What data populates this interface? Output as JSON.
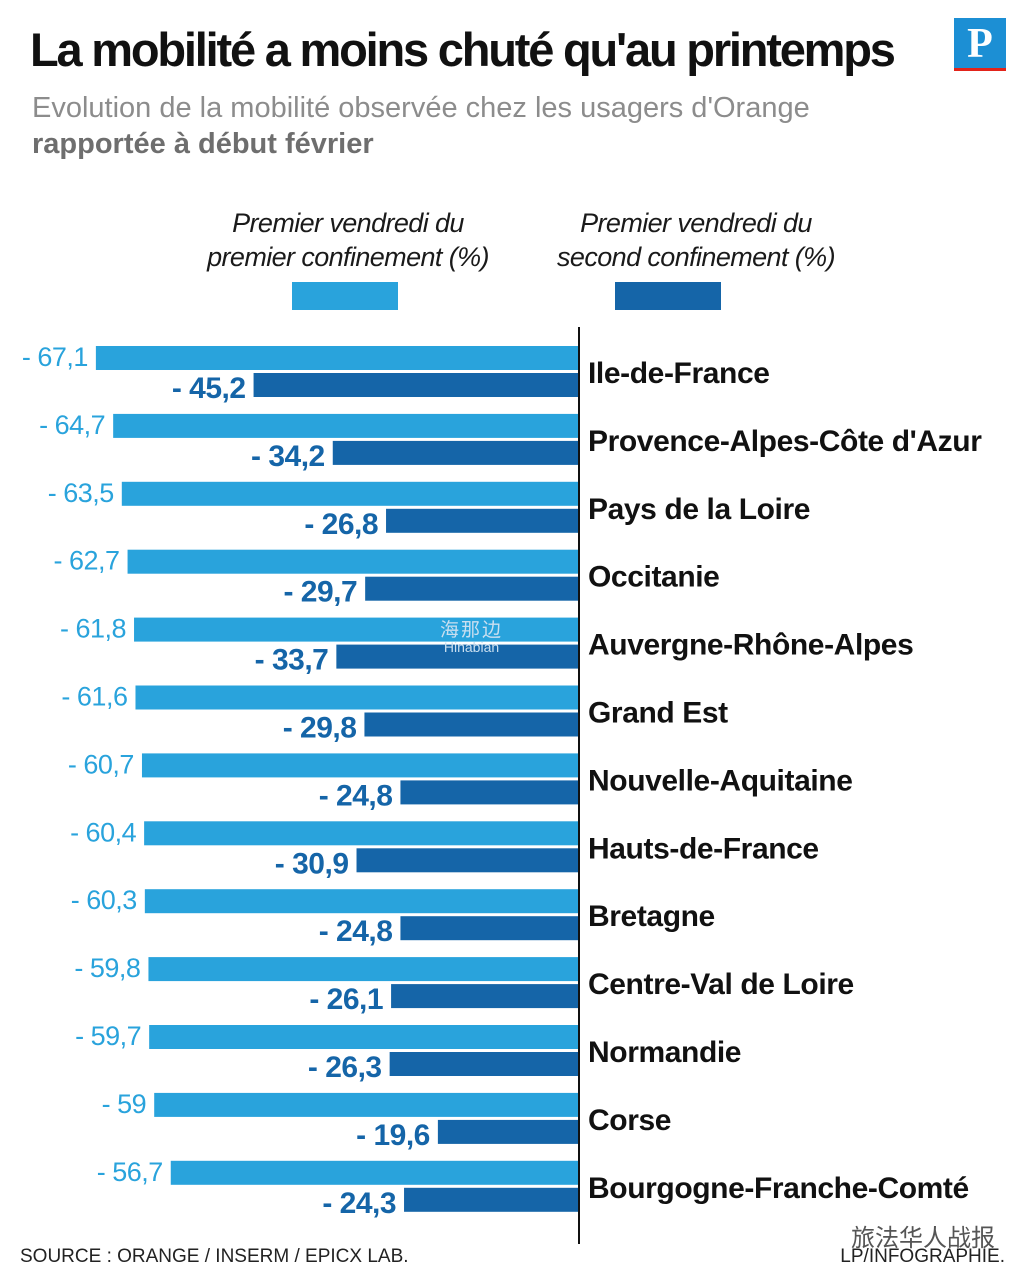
{
  "header": {
    "title": "La mobilité a moins chuté qu'au printemps",
    "subtitle": "Evolution de la mobilité observée chez les usagers d'Orange",
    "subtitle_bold": "rapportée à début février",
    "logo_letter": "P"
  },
  "footer": {
    "source": "SOURCE : ORANGE / INSERM / EPICX LAB.",
    "credit": "LP/INFOGRAPHIE."
  },
  "watermark": {
    "line1": "海那边",
    "line2": "Hinabian"
  },
  "wechat_tag": "旅法华人战报",
  "colors": {
    "first": "#29a3dc",
    "second": "#1565a8",
    "axis": "#111111"
  },
  "chart_data": {
    "type": "bar",
    "orientation": "horizontal",
    "title": "La mobilité a moins chuté qu'au printemps",
    "categories": [
      "Ile-de-France",
      "Provence-Alpes-Côte d'Azur",
      "Pays de la Loire",
      "Occitanie",
      "Auvergne-Rhône-Alpes",
      "Grand Est",
      "Nouvelle-Aquitaine",
      "Hauts-de-France",
      "Bretagne",
      "Centre-Val de Loire",
      "Normandie",
      "Corse",
      "Bourgogne-Franche-Comté"
    ],
    "series": [
      {
        "name_line1": "Premier vendredi du",
        "name_line2": "premier confinement (%)",
        "values": [
          -67.1,
          -64.7,
          -63.5,
          -62.7,
          -61.8,
          -61.6,
          -60.7,
          -60.4,
          -60.3,
          -59.8,
          -59.7,
          -59,
          -56.7
        ],
        "labels": [
          "- 67,1",
          "- 64,7",
          "- 63,5",
          "- 62,7",
          "- 61,8",
          "- 61,6",
          "- 60,7",
          "- 60,4",
          "- 60,3",
          "- 59,8",
          "- 59,7",
          "- 59",
          "- 56,7"
        ]
      },
      {
        "name_line1": "Premier vendredi du",
        "name_line2": "second confinement (%)",
        "values": [
          -45.2,
          -34.2,
          -26.8,
          -29.7,
          -33.7,
          -29.8,
          -24.8,
          -30.9,
          -24.8,
          -26.1,
          -26.3,
          -19.6,
          -24.3
        ],
        "labels": [
          "- 45,2",
          "- 34,2",
          "- 26,8",
          "- 29,7",
          "- 33,7",
          "- 29,8",
          "- 24,8",
          "- 30,9",
          "- 24,8",
          "- 26,1",
          "- 26,3",
          "- 19,6",
          "- 24,3"
        ]
      }
    ],
    "xlim": [
      -70,
      0
    ],
    "grid": false,
    "legend_position": "top"
  }
}
